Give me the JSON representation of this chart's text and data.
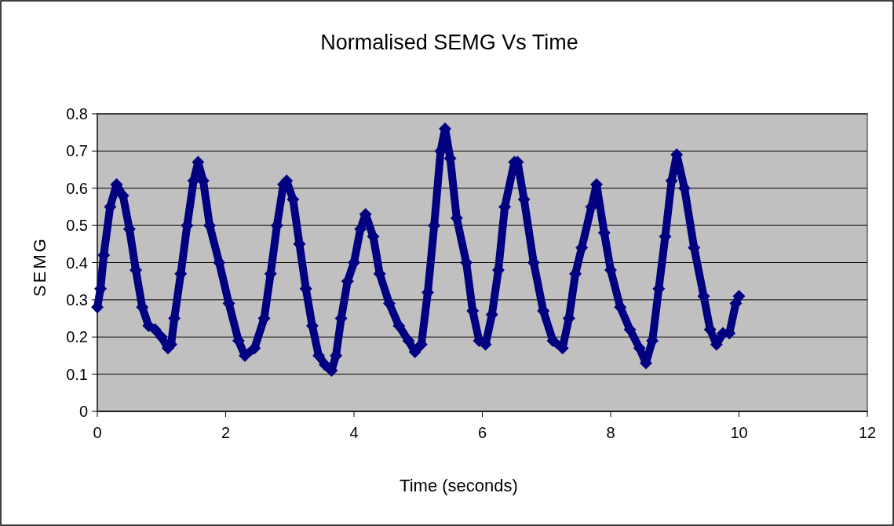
{
  "chart_data": {
    "type": "line",
    "title": "Normalised SEMG Vs Time",
    "xlabel": "Time (seconds)",
    "ylabel": "SEMG",
    "xlim": [
      0,
      12
    ],
    "xticks": [
      0,
      2,
      4,
      6,
      8,
      10,
      12
    ],
    "ylim": [
      0,
      0.8
    ],
    "yticks": [
      0,
      0.1,
      0.2,
      0.3,
      0.4,
      0.5,
      0.6,
      0.7,
      0.8
    ],
    "grid": "y",
    "marker": "diamond",
    "line_style": "solid",
    "series": [
      {
        "color": "#000080",
        "x": [
          0,
          0.05,
          0.1,
          0.2,
          0.3,
          0.4,
          0.5,
          0.6,
          0.7,
          0.8,
          0.9,
          1.0,
          1.1,
          1.15,
          1.2,
          1.3,
          1.4,
          1.5,
          1.57,
          1.65,
          1.75,
          1.9,
          2.05,
          2.2,
          2.3,
          2.45,
          2.6,
          2.7,
          2.8,
          2.9,
          2.95,
          3.05,
          3.15,
          3.25,
          3.35,
          3.45,
          3.55,
          3.65,
          3.72,
          3.8,
          3.9,
          4.0,
          4.1,
          4.18,
          4.3,
          4.4,
          4.55,
          4.7,
          4.85,
          4.95,
          5.05,
          5.15,
          5.25,
          5.35,
          5.42,
          5.5,
          5.6,
          5.75,
          5.85,
          5.95,
          6.05,
          6.15,
          6.25,
          6.35,
          6.5,
          6.55,
          6.65,
          6.8,
          6.95,
          7.1,
          7.25,
          7.35,
          7.45,
          7.55,
          7.7,
          7.78,
          7.9,
          8.0,
          8.15,
          8.3,
          8.45,
          8.55,
          8.65,
          8.75,
          8.85,
          8.95,
          9.03,
          9.15,
          9.3,
          9.45,
          9.55,
          9.65,
          9.75,
          9.85,
          9.95,
          10
        ],
        "values": [
          0.28,
          0.33,
          0.42,
          0.55,
          0.61,
          0.58,
          0.49,
          0.38,
          0.28,
          0.23,
          0.22,
          0.2,
          0.17,
          0.18,
          0.25,
          0.37,
          0.5,
          0.62,
          0.67,
          0.62,
          0.5,
          0.4,
          0.29,
          0.19,
          0.15,
          0.17,
          0.25,
          0.37,
          0.5,
          0.61,
          0.62,
          0.57,
          0.45,
          0.33,
          0.23,
          0.15,
          0.125,
          0.11,
          0.15,
          0.25,
          0.35,
          0.4,
          0.49,
          0.53,
          0.47,
          0.37,
          0.29,
          0.23,
          0.19,
          0.16,
          0.18,
          0.32,
          0.5,
          0.7,
          0.76,
          0.68,
          0.52,
          0.4,
          0.27,
          0.19,
          0.18,
          0.26,
          0.38,
          0.55,
          0.67,
          0.67,
          0.57,
          0.4,
          0.27,
          0.19,
          0.17,
          0.25,
          0.37,
          0.44,
          0.55,
          0.61,
          0.48,
          0.38,
          0.28,
          0.22,
          0.17,
          0.13,
          0.19,
          0.33,
          0.47,
          0.62,
          0.69,
          0.6,
          0.44,
          0.31,
          0.22,
          0.18,
          0.21,
          0.21,
          0.29,
          0.31
        ]
      }
    ]
  }
}
